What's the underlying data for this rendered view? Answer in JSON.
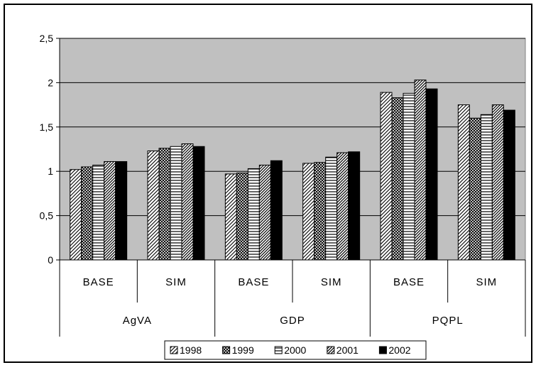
{
  "chart_data": {
    "type": "bar",
    "title": "",
    "xlabel": "",
    "ylabel": "",
    "ylim": [
      0,
      2.5
    ],
    "y_ticks": [
      "0",
      "0,5",
      "1",
      "1,5",
      "2",
      "2,5"
    ],
    "y_tick_values": [
      0,
      0.5,
      1,
      1.5,
      2,
      2.5
    ],
    "grid": "horizontal",
    "plot_background": "#c0c0c0",
    "legend_position": "bottom",
    "groups": [
      {
        "label": "AgVA",
        "subcategories": [
          "BASE",
          "SIM"
        ]
      },
      {
        "label": "GDP",
        "subcategories": [
          "BASE",
          "SIM"
        ]
      },
      {
        "label": "PQPL",
        "subcategories": [
          "BASE",
          "SIM"
        ]
      }
    ],
    "categories": [
      "BASE",
      "SIM",
      "BASE",
      "SIM",
      "BASE",
      "SIM"
    ],
    "series": [
      {
        "name": "1998",
        "pattern": "diagonal-hatch",
        "values": [
          1.02,
          1.23,
          0.97,
          1.09,
          1.89,
          1.75
        ]
      },
      {
        "name": "1999",
        "pattern": "crosshatch",
        "values": [
          1.05,
          1.26,
          0.98,
          1.1,
          1.83,
          1.6
        ]
      },
      {
        "name": "2000",
        "pattern": "horizontal-lines",
        "values": [
          1.07,
          1.28,
          1.03,
          1.16,
          1.88,
          1.64
        ]
      },
      {
        "name": "2001",
        "pattern": "diagonal-hatch-dense",
        "values": [
          1.11,
          1.31,
          1.07,
          1.21,
          2.03,
          1.75
        ]
      },
      {
        "name": "2002",
        "pattern": "solid-black",
        "values": [
          1.11,
          1.28,
          1.12,
          1.22,
          1.93,
          1.69
        ]
      }
    ]
  }
}
